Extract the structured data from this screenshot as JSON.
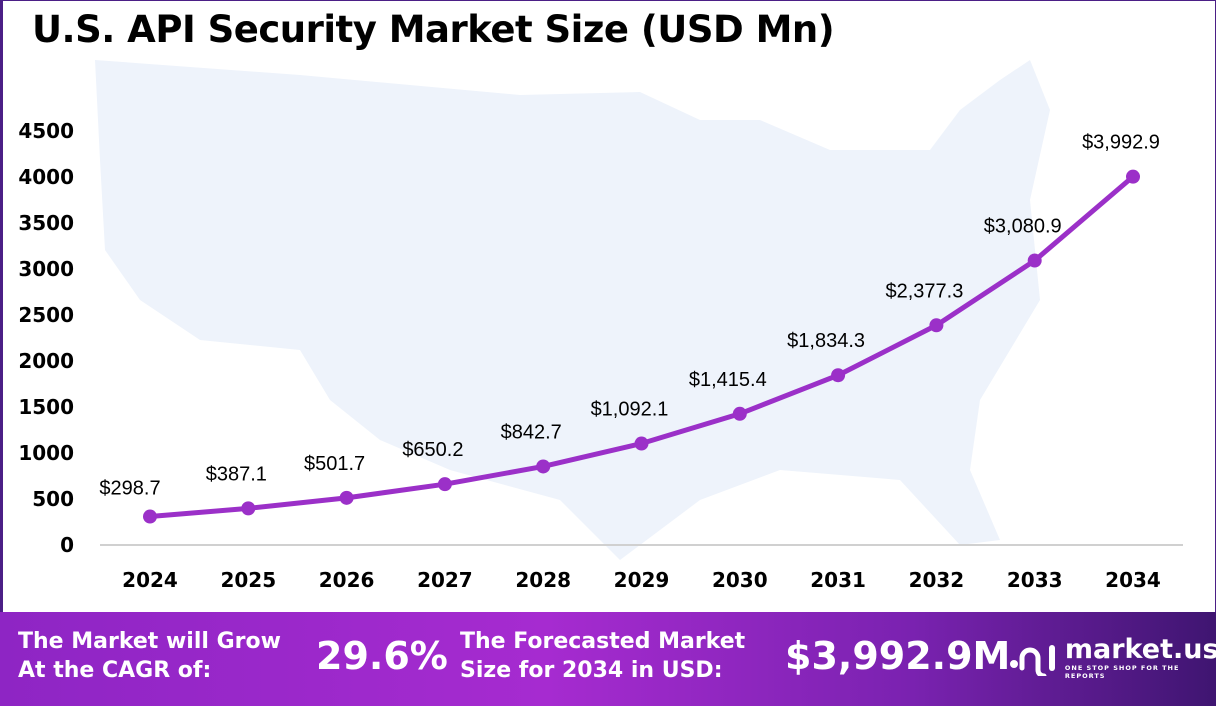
{
  "title": "U.S. API Security Market Size (USD Mn)",
  "chart_data": {
    "type": "line",
    "title": "U.S. API Security Market Size (USD Mn)",
    "categories": [
      "2024",
      "2025",
      "2026",
      "2027",
      "2028",
      "2029",
      "2030",
      "2031",
      "2032",
      "2033",
      "2034"
    ],
    "values": [
      298.7,
      387.1,
      501.7,
      650.2,
      842.7,
      1092.1,
      1415.4,
      1834.3,
      2377.3,
      3080.9,
      3992.9
    ],
    "data_labels": [
      "$298.7",
      "$387.1",
      "$501.7",
      "$650.2",
      "$842.7",
      "$1,092.1",
      "$1,415.4",
      "$1,834.3",
      "$2,377.3",
      "$3,080.9",
      "$3,992.9"
    ],
    "yticks": [
      "0",
      "500",
      "1000",
      "1500",
      "2000",
      "2500",
      "3000",
      "3500",
      "4000",
      "4500"
    ],
    "ylim": [
      0,
      4500
    ],
    "grid": false,
    "line_color": "#9b30c8"
  },
  "footer": {
    "cagr_label": [
      "The Market will Grow",
      "At the CAGR of:"
    ],
    "cagr_value": "29.6%",
    "forecast_label": [
      "The Forecasted Market",
      "Size for 2034 in USD:"
    ],
    "forecast_value": "$3,992.9M",
    "brand": "market.us",
    "tagline": "ONE STOP SHOP FOR THE REPORTS"
  }
}
